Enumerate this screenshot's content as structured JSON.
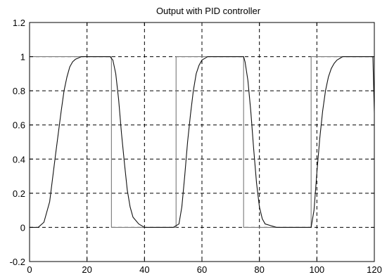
{
  "chart_data": {
    "type": "line",
    "title": "Output with PID controller",
    "xlabel": "",
    "ylabel": "",
    "xlim": [
      0,
      120
    ],
    "ylim": [
      -0.2,
      1.2
    ],
    "xticks": [
      0,
      20,
      40,
      60,
      80,
      100,
      120
    ],
    "yticks": [
      -0.2,
      0,
      0.2,
      0.4,
      0.6,
      0.8,
      1,
      1.2
    ],
    "xtick_labels": [
      "0",
      "20",
      "40",
      "60",
      "80",
      "100",
      "120"
    ],
    "ytick_labels": [
      "-0.2",
      "0",
      "0.2",
      "0.4",
      "0.6",
      "0.8",
      "1",
      "1.2"
    ],
    "grid": true,
    "series": [
      {
        "color": "#7a7a7a",
        "x": [
          0,
          28.5,
          28.5,
          51,
          51,
          74.5,
          74.5,
          98,
          98,
          120
        ],
        "y": [
          1,
          1,
          0,
          0,
          1,
          1,
          0,
          0,
          1,
          1
        ]
      },
      {
        "color": "#111111",
        "x": [
          0,
          3,
          5,
          7,
          9,
          10,
          11,
          12,
          13,
          14,
          15,
          16,
          18,
          20,
          22,
          24,
          26,
          28,
          29,
          30,
          31,
          32,
          33,
          34,
          35,
          36,
          38,
          40,
          42,
          45,
          50,
          52,
          53,
          54,
          55,
          56,
          57,
          58,
          59,
          60,
          62,
          64,
          66,
          68,
          70,
          72,
          74.5,
          75,
          76,
          77,
          78,
          79,
          80,
          81,
          82,
          84,
          86,
          88,
          92,
          96,
          98,
          99,
          100,
          101,
          102,
          103,
          104,
          105,
          106,
          107,
          108,
          109,
          112,
          115,
          119.5,
          120
        ],
        "y": [
          0,
          0,
          0.03,
          0.15,
          0.42,
          0.55,
          0.68,
          0.8,
          0.88,
          0.94,
          0.97,
          0.985,
          1,
          1,
          1,
          1,
          1,
          1,
          0.98,
          0.9,
          0.75,
          0.55,
          0.38,
          0.22,
          0.12,
          0.06,
          0.02,
          0,
          0,
          0,
          0,
          0.02,
          0.12,
          0.3,
          0.5,
          0.66,
          0.8,
          0.9,
          0.95,
          0.98,
          1,
          1,
          1,
          1,
          1,
          1,
          1,
          0.97,
          0.86,
          0.68,
          0.46,
          0.26,
          0.12,
          0.05,
          0.02,
          0.01,
          0,
          0,
          0,
          0,
          0,
          0.1,
          0.32,
          0.52,
          0.68,
          0.8,
          0.88,
          0.93,
          0.96,
          0.98,
          0.99,
          1,
          1,
          1,
          1,
          0.67
        ]
      }
    ]
  }
}
